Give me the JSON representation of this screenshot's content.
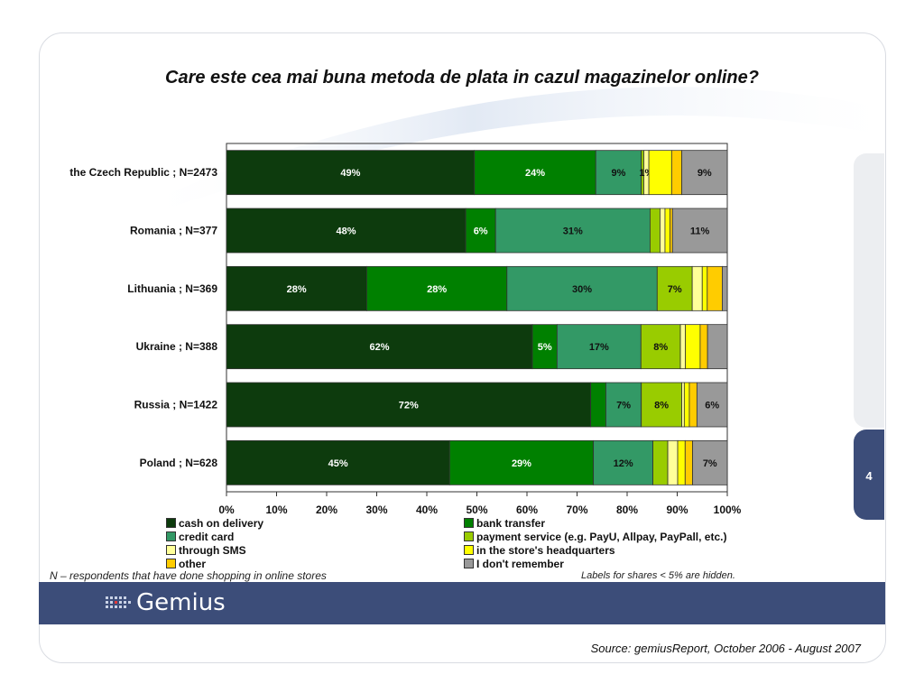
{
  "slide": {
    "title": "Care este cea mai buna metoda de plata in cazul magazinelor online?",
    "page_number": "4",
    "footnote": "N – respondents that have done shopping in online stores",
    "hidden_note": "Labels for shares < 5% are hidden.",
    "source": "Source: gemiusReport, October 2006 - August 2007",
    "brand": "Gemius"
  },
  "chart_data": {
    "type": "bar",
    "orientation": "horizontal",
    "stacked": "100%",
    "categories": [
      "the Czech Republic ; N=2473",
      "Romania ; N=377",
      "Lithuania ; N=369",
      "Ukraine ; N=388",
      "Russia ; N=1422",
      "Poland ; N=628"
    ],
    "series": [
      {
        "name": "cash on delivery",
        "color": "#0d3b0d",
        "label_color": "#ffffff",
        "values": [
          49,
          48,
          28,
          62,
          72,
          45
        ],
        "labels": [
          "49%",
          "48%",
          "28%",
          "62%",
          "72%",
          "45%"
        ]
      },
      {
        "name": "bank transfer",
        "color": "#008000",
        "label_color": "#ffffff",
        "values": [
          24,
          6,
          28,
          5,
          3,
          29
        ],
        "labels": [
          "24%",
          "6%",
          "28%",
          "5%",
          "",
          "29%"
        ]
      },
      {
        "name": "credit card",
        "color": "#339966",
        "label_color": "#111111",
        "values": [
          9,
          31,
          30,
          17,
          7,
          12
        ],
        "labels": [
          "9%",
          "31%",
          "30%",
          "17%",
          "7%",
          "12%"
        ]
      },
      {
        "name": "payment service (e.g. PayU, Allpay, PayPall, etc.)",
        "color": "#99cc00",
        "label_color": "#111111",
        "values": [
          0.5,
          2,
          7,
          8,
          8,
          3
        ],
        "labels": [
          "",
          "",
          "7%",
          "8%",
          "8%",
          ""
        ]
      },
      {
        "name": "through SMS",
        "color": "#ffff99",
        "label_color": "#111111",
        "values": [
          1,
          1,
          2,
          1,
          0.5,
          2
        ],
        "labels": [
          "1%",
          "",
          "",
          "",
          "",
          ""
        ]
      },
      {
        "name": "in the store's headquarters",
        "color": "#ffff00",
        "label_color": "#111111",
        "values": [
          4.5,
          1,
          1,
          3,
          1,
          1.5
        ],
        "labels": [
          "",
          "",
          "",
          "",
          "",
          ""
        ]
      },
      {
        "name": "other",
        "color": "#ffcc00",
        "label_color": "#111111",
        "values": [
          2,
          0.5,
          3,
          1.5,
          1.5,
          1.5
        ],
        "labels": [
          "",
          "",
          "",
          "",
          "",
          ""
        ]
      },
      {
        "name": "I don't remember",
        "color": "#999999",
        "label_color": "#111111",
        "values": [
          9,
          11,
          1,
          4,
          6,
          7
        ],
        "labels": [
          "9%",
          "11%",
          "",
          "",
          "6%",
          "7%"
        ]
      }
    ],
    "x_ticks": [
      "0%",
      "10%",
      "20%",
      "30%",
      "40%",
      "50%",
      "60%",
      "70%",
      "80%",
      "90%",
      "100%"
    ],
    "xlim": [
      0,
      100
    ],
    "legend_position": "bottom",
    "grid": false
  }
}
